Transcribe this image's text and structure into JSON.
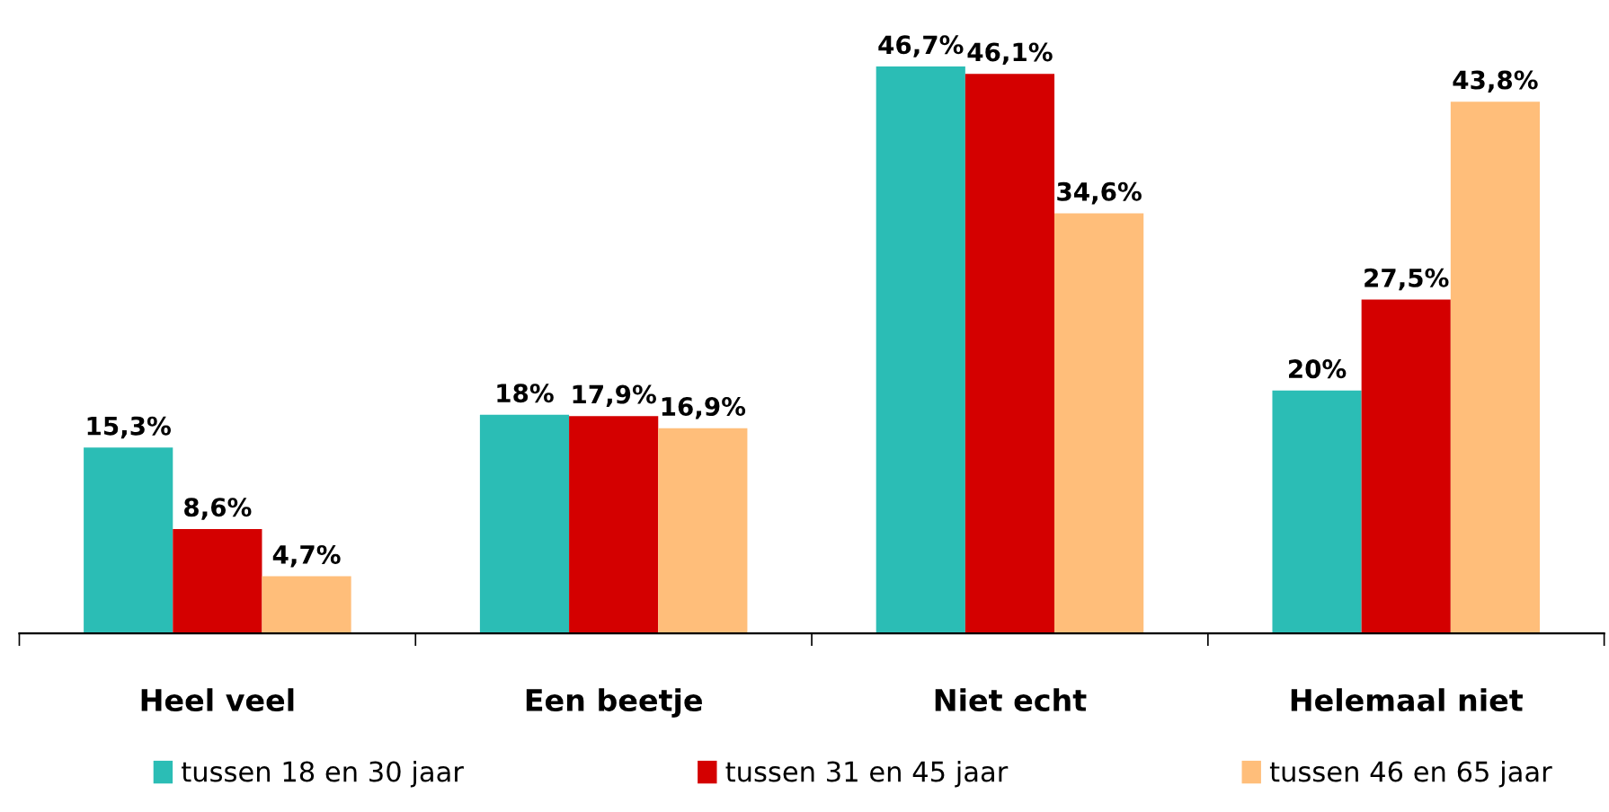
{
  "chart_data": {
    "type": "bar",
    "categories": [
      "Heel veel",
      "Een beetje",
      "Niet echt",
      "Helemaal niet"
    ],
    "series": [
      {
        "name": "tussen 18 en 30 jaar",
        "color": "#2bbdb5",
        "values": [
          15.3,
          18,
          46.7,
          20
        ],
        "value_labels": [
          "15,3%",
          "18%",
          "46,7%",
          "20%"
        ]
      },
      {
        "name": "tussen 31 en 45 jaar",
        "color": "#d40000",
        "values": [
          8.6,
          17.9,
          46.1,
          27.5
        ],
        "value_labels": [
          "8,6%",
          "17,9%",
          "46,1%",
          "27,5%"
        ]
      },
      {
        "name": "tussen 46 en 65 jaar",
        "color": "#ffbe7a",
        "values": [
          4.7,
          16.9,
          34.6,
          43.8
        ],
        "value_labels": [
          "4,7%",
          "16,9%",
          "34,6%",
          "43,8%"
        ]
      }
    ],
    "grid": false,
    "legend": "bottom"
  }
}
